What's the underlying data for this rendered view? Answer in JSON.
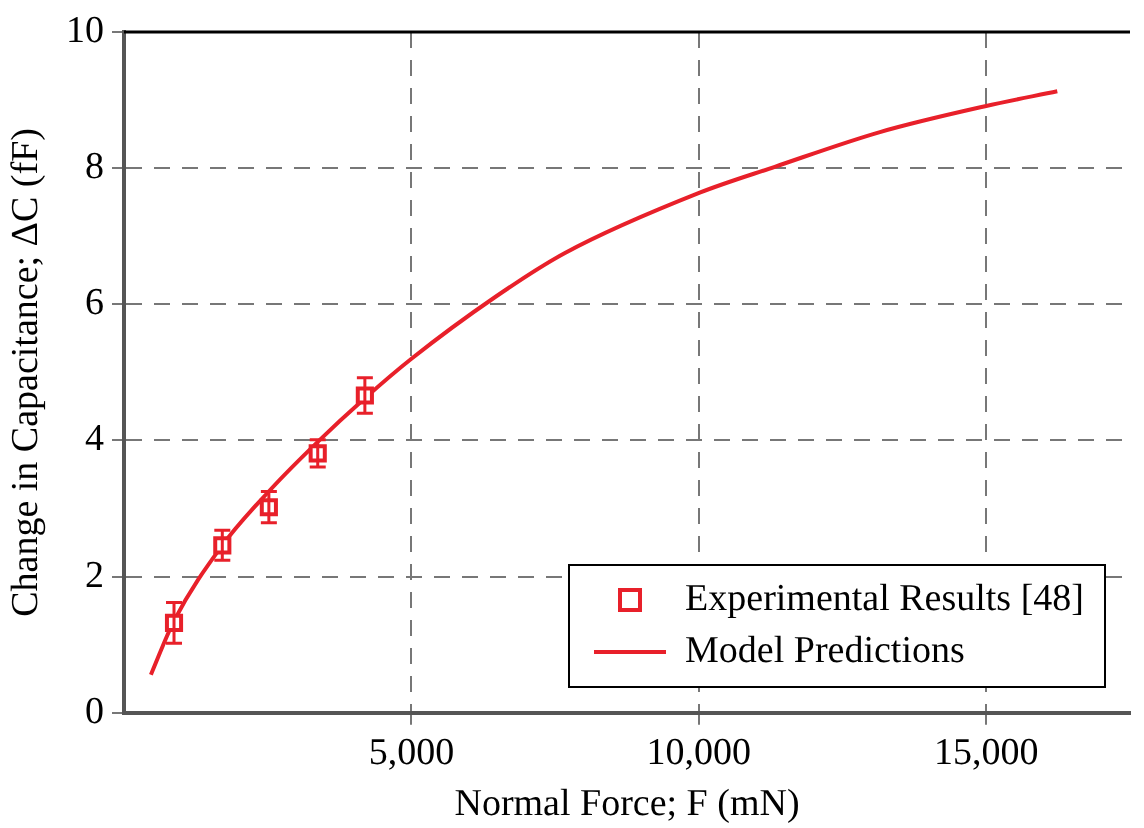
{
  "chart_data": {
    "type": "scatter",
    "xlabel": "Normal Force; F (mN)",
    "ylabel": "Change in Capacitance; ΔC (fF)",
    "xlim": [
      0,
      17500
    ],
    "ylim": [
      0,
      10
    ],
    "xticks": [
      {
        "value": 5000,
        "label": "5,000"
      },
      {
        "value": 10000,
        "label": "10,000"
      },
      {
        "value": 15000,
        "label": "15,000"
      }
    ],
    "yticks": [
      0,
      2,
      4,
      6,
      8,
      10
    ],
    "grid": true,
    "legend": "bottom right",
    "series": [
      {
        "name": "Experimental Results [48]",
        "color": "#e8202a",
        "marker": "square",
        "x": [
          870,
          1710,
          2520,
          3370,
          4190
        ],
        "values": [
          1.32,
          2.46,
          3.02,
          3.81,
          4.66
        ],
        "errors": [
          0.3,
          0.22,
          0.23,
          0.2,
          0.26
        ]
      },
      {
        "name": "Model Predictions",
        "type": "line",
        "color": "#e8202a",
        "marker": "none",
        "line_style": "solid",
        "x": [
          468,
          870,
          1710,
          2550,
          3370,
          4190,
          5000,
          6445,
          7663,
          10015,
          11321,
          13150,
          14980,
          16235
        ],
        "values": [
          0.56,
          1.35,
          2.46,
          3.28,
          3.98,
          4.62,
          5.2,
          6.1,
          6.75,
          7.64,
          8.02,
          8.53,
          8.91,
          9.13
        ]
      }
    ]
  }
}
